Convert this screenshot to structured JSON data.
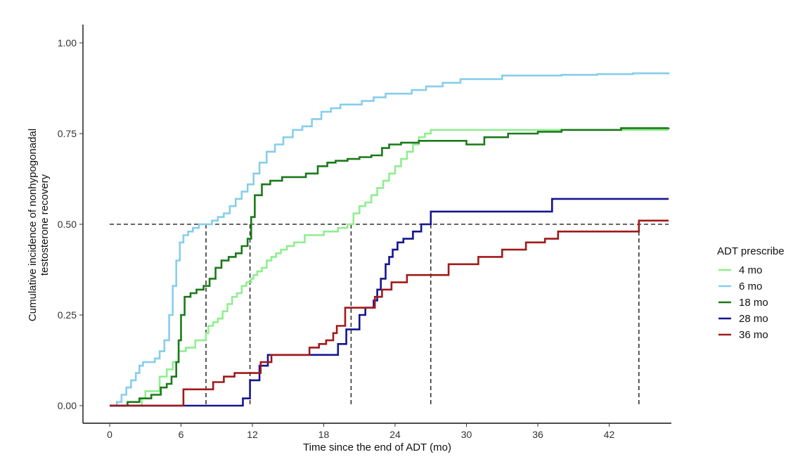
{
  "chart_data": {
    "type": "line",
    "title": "",
    "xlabel": "Time since the end of ADT (mo)",
    "ylabel_lines": [
      "Cumulative incidence of nonhypogonadal",
      "testosterone recovery"
    ],
    "xlim": [
      -2.2,
      47
    ],
    "ylim": [
      -0.05,
      1.05
    ],
    "x_ticks": [
      0,
      6,
      12,
      18,
      24,
      30,
      36,
      42
    ],
    "x_tick_labels": [
      "0",
      "6",
      "12",
      "18",
      "24",
      "30",
      "36",
      "42"
    ],
    "y_ticks": [
      0,
      0.25,
      0.5,
      0.75,
      1.0
    ],
    "y_tick_labels": [
      "0.00",
      "0.25",
      "0.50",
      "0.75",
      "1.00"
    ],
    "grid": false,
    "legend": {
      "title": "ADT prescribe",
      "placement": "right"
    },
    "reference_lines": {
      "horizontal_y": 0.5,
      "medians_x": [
        8.1,
        11.8,
        20.3,
        27.0,
        44.5
      ],
      "color": "#333333"
    },
    "series": [
      {
        "name": "4 mo",
        "color": "#90ee90",
        "x": [
          0,
          2.3,
          2.7,
          3.0,
          4.2,
          4.8,
          5.3,
          5.8,
          6.4,
          7.2,
          8.1,
          8.3,
          8.7,
          9.1,
          9.5,
          9.9,
          10.3,
          10.7,
          11.1,
          11.5,
          11.9,
          12.1,
          12.4,
          12.8,
          13.2,
          13.6,
          14.0,
          14.4,
          14.9,
          15.5,
          16.4,
          17.3,
          18.0,
          19.2,
          20.0,
          20.5,
          21.0,
          21.5,
          22.0,
          22.5,
          23.0,
          23.5,
          24.0,
          24.5,
          25.0,
          25.5,
          26.0,
          26.5,
          27.0,
          47
        ],
        "y": [
          0,
          0,
          0.02,
          0.04,
          0.08,
          0.1,
          0.12,
          0.15,
          0.16,
          0.18,
          0.2,
          0.22,
          0.23,
          0.24,
          0.26,
          0.28,
          0.3,
          0.31,
          0.33,
          0.34,
          0.35,
          0.36,
          0.37,
          0.38,
          0.4,
          0.41,
          0.42,
          0.43,
          0.44,
          0.45,
          0.47,
          0.47,
          0.48,
          0.49,
          0.5,
          0.53,
          0.55,
          0.56,
          0.58,
          0.6,
          0.62,
          0.64,
          0.66,
          0.68,
          0.7,
          0.72,
          0.74,
          0.75,
          0.76,
          0.76
        ]
      },
      {
        "name": "6 mo",
        "color": "#87ceeb",
        "x": [
          0,
          0.6,
          1.0,
          1.4,
          1.8,
          2.2,
          2.5,
          2.8,
          3.2,
          3.8,
          4.2,
          4.6,
          5.0,
          5.3,
          5.6,
          5.9,
          6.2,
          6.6,
          7.0,
          7.5,
          8.1,
          8.6,
          9.1,
          9.6,
          10.1,
          10.6,
          11.1,
          11.6,
          12.1,
          12.6,
          13.2,
          13.9,
          14.6,
          15.4,
          16.2,
          17.0,
          17.8,
          18.6,
          19.4,
          20.3,
          21.2,
          22.2,
          23.2,
          24.2,
          25.4,
          26.6,
          28.0,
          29.5,
          31.0,
          33.0,
          35.0,
          38.0,
          41.0,
          44.0,
          47
        ],
        "y": [
          0,
          0.01,
          0.03,
          0.05,
          0.07,
          0.09,
          0.11,
          0.12,
          0.12,
          0.13,
          0.15,
          0.18,
          0.25,
          0.33,
          0.4,
          0.45,
          0.47,
          0.48,
          0.49,
          0.5,
          0.5,
          0.51,
          0.52,
          0.53,
          0.55,
          0.57,
          0.59,
          0.61,
          0.64,
          0.67,
          0.7,
          0.72,
          0.74,
          0.76,
          0.77,
          0.79,
          0.81,
          0.82,
          0.83,
          0.83,
          0.84,
          0.85,
          0.86,
          0.86,
          0.87,
          0.88,
          0.89,
          0.9,
          0.9,
          0.91,
          0.91,
          0.912,
          0.914,
          0.916,
          0.918
        ]
      },
      {
        "name": "18 mo",
        "color": "#1a7a1a",
        "x": [
          0,
          1.5,
          2.5,
          3.5,
          4.3,
          4.8,
          5.2,
          5.6,
          5.8,
          6.0,
          6.3,
          6.8,
          7.3,
          7.9,
          8.4,
          8.9,
          9.4,
          10.0,
          10.6,
          11.1,
          11.6,
          11.9,
          12.2,
          12.8,
          13.5,
          14.5,
          15.5,
          16.5,
          17.5,
          18.3,
          19.0,
          20.0,
          21.0,
          22.0,
          22.9,
          23.5,
          24.5,
          26.0,
          28.0,
          30.0,
          31.5,
          33.5,
          36.0,
          38.0,
          40.0,
          43.0,
          47
        ],
        "y": [
          0,
          0.01,
          0.02,
          0.03,
          0.05,
          0.06,
          0.08,
          0.12,
          0.18,
          0.25,
          0.3,
          0.31,
          0.32,
          0.33,
          0.35,
          0.38,
          0.4,
          0.41,
          0.42,
          0.44,
          0.46,
          0.52,
          0.58,
          0.61,
          0.62,
          0.63,
          0.63,
          0.64,
          0.66,
          0.67,
          0.675,
          0.68,
          0.685,
          0.69,
          0.71,
          0.72,
          0.725,
          0.73,
          0.73,
          0.72,
          0.74,
          0.75,
          0.755,
          0.76,
          0.76,
          0.765,
          0.766
        ]
      },
      {
        "name": "28 mo",
        "color": "#151590",
        "x": [
          0,
          5.9,
          10.5,
          11.2,
          11.8,
          12.6,
          13.3,
          18.9,
          19.2,
          19.9,
          21.0,
          21.5,
          22.2,
          22.5,
          22.8,
          23.2,
          23.5,
          23.8,
          24.2,
          24.7,
          25.5,
          26.2,
          27.0,
          37.2,
          47
        ],
        "y": [
          0,
          0,
          0,
          0.02,
          0.07,
          0.11,
          0.14,
          0.14,
          0.17,
          0.21,
          0.25,
          0.27,
          0.29,
          0.32,
          0.35,
          0.39,
          0.41,
          0.43,
          0.45,
          0.46,
          0.48,
          0.5,
          0.535,
          0.57,
          0.57
        ]
      },
      {
        "name": "36 mo",
        "color": "#a01a1a",
        "x": [
          0,
          5.8,
          6.2,
          8.7,
          9.6,
          10.5,
          12.7,
          13.6,
          16.8,
          17.6,
          18.2,
          18.8,
          19.1,
          19.8,
          21.8,
          22.3,
          22.9,
          23.7,
          25.0,
          26.6,
          28.5,
          31.0,
          33.0,
          35.0,
          36.6,
          37.7,
          38.9,
          44.5,
          47
        ],
        "y": [
          0,
          0,
          0.045,
          0.065,
          0.08,
          0.09,
          0.12,
          0.14,
          0.16,
          0.17,
          0.18,
          0.2,
          0.22,
          0.27,
          0.27,
          0.3,
          0.32,
          0.34,
          0.36,
          0.36,
          0.39,
          0.41,
          0.43,
          0.45,
          0.46,
          0.48,
          0.48,
          0.51,
          0.51
        ]
      }
    ]
  }
}
